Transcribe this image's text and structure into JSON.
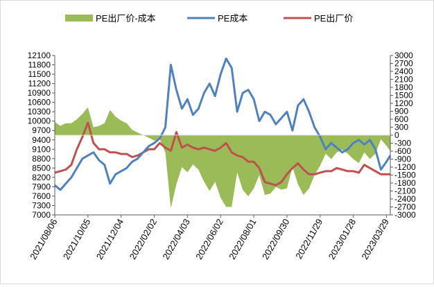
{
  "chart_data": {
    "type": "line",
    "title": "",
    "legend_position": "top",
    "legend": [
      {
        "key": "spread",
        "label": "PE出厂价-成本",
        "color": "#9bbb59",
        "kind": "area"
      },
      {
        "key": "cost",
        "label": "PE成本",
        "color": "#4f81bd",
        "kind": "line"
      },
      {
        "key": "price",
        "label": "PE出厂价",
        "color": "#c0504d",
        "kind": "line"
      }
    ],
    "x_dates": [
      "2021/08/06",
      "2021/10/05",
      "2021/12/04",
      "2022/02/02",
      "2022/04/03",
      "2022/06/02",
      "2022/08/01",
      "2022/09/30",
      "2022/11/29",
      "2023/01/28",
      "2023/03/29"
    ],
    "x_range": [
      "2021/08/06",
      "2023/04/05"
    ],
    "y_left": {
      "min": 7000,
      "max": 12100,
      "step": 300,
      "ticks": [
        "7000",
        "7300",
        "7600",
        "7900",
        "8200",
        "8500",
        "8800",
        "9100",
        "9400",
        "9700",
        "10000",
        "10300",
        "10600",
        "10900",
        "11200",
        "11500",
        "11800",
        "12100"
      ]
    },
    "y_right": {
      "min": -3000,
      "max": 3000,
      "step": 300,
      "ticks": [
        "-3000",
        "-2700",
        "-2400",
        "-2100",
        "-1800",
        "-1500",
        "-1200",
        "-900",
        "-600",
        "-300",
        "0",
        "300",
        "600",
        "900",
        "1200",
        "1500",
        "1800",
        "2100",
        "2400",
        "2700",
        "3000"
      ]
    },
    "grid": false,
    "series": [
      {
        "name": "PE成本",
        "axis": "left",
        "color": "#4f81bd",
        "x": [
          "2021/08/06",
          "2021/08/16",
          "2021/08/26",
          "2021/09/05",
          "2021/09/15",
          "2021/09/25",
          "2021/10/05",
          "2021/10/15",
          "2021/10/25",
          "2021/11/04",
          "2021/11/14",
          "2021/11/24",
          "2021/12/04",
          "2021/12/14",
          "2021/12/24",
          "2022/01/03",
          "2022/01/13",
          "2022/01/23",
          "2022/02/02",
          "2022/02/12",
          "2022/02/22",
          "2022/03/04",
          "2022/03/14",
          "2022/03/24",
          "2022/04/03",
          "2022/04/13",
          "2022/04/23",
          "2022/05/03",
          "2022/05/13",
          "2022/05/23",
          "2022/06/02",
          "2022/06/12",
          "2022/06/22",
          "2022/07/02",
          "2022/07/12",
          "2022/07/22",
          "2022/08/01",
          "2022/08/11",
          "2022/08/21",
          "2022/08/31",
          "2022/09/10",
          "2022/09/20",
          "2022/09/30",
          "2022/10/10",
          "2022/10/20",
          "2022/10/30",
          "2022/11/09",
          "2022/11/19",
          "2022/11/29",
          "2022/12/09",
          "2022/12/19",
          "2022/12/29",
          "2023/01/08",
          "2023/01/18",
          "2023/01/28",
          "2023/02/07",
          "2023/02/17",
          "2023/02/27",
          "2023/03/09",
          "2023/03/19",
          "2023/03/29",
          "2023/04/05"
        ],
        "y": [
          7950,
          7800,
          8000,
          8200,
          8500,
          8800,
          8900,
          9000,
          8750,
          8600,
          8000,
          8300,
          8400,
          8500,
          8700,
          8800,
          9000,
          9200,
          9300,
          9450,
          9800,
          11800,
          11000,
          10400,
          10700,
          10200,
          10400,
          10900,
          11200,
          10800,
          11500,
          12000,
          11700,
          10300,
          10900,
          11000,
          10700,
          10000,
          10300,
          10200,
          9900,
          10100,
          10300,
          9700,
          10500,
          10700,
          10300,
          9800,
          9500,
          9100,
          9300,
          9150,
          9000,
          9100,
          9300,
          9400,
          9250,
          9400,
          9100,
          8450,
          8700,
          8900
        ]
      },
      {
        "name": "PE出厂价",
        "axis": "left",
        "color": "#c0504d",
        "x": [
          "2021/08/06",
          "2021/08/16",
          "2021/08/26",
          "2021/09/05",
          "2021/09/15",
          "2021/09/25",
          "2021/10/05",
          "2021/10/15",
          "2021/10/25",
          "2021/11/04",
          "2021/11/14",
          "2021/11/24",
          "2021/12/04",
          "2021/12/14",
          "2021/12/24",
          "2022/01/03",
          "2022/01/13",
          "2022/01/23",
          "2022/02/02",
          "2022/02/12",
          "2022/02/22",
          "2022/03/04",
          "2022/03/14",
          "2022/03/24",
          "2022/04/03",
          "2022/04/13",
          "2022/04/23",
          "2022/05/03",
          "2022/05/13",
          "2022/05/23",
          "2022/06/02",
          "2022/06/12",
          "2022/06/22",
          "2022/07/02",
          "2022/07/12",
          "2022/07/22",
          "2022/08/01",
          "2022/08/11",
          "2022/08/21",
          "2022/08/31",
          "2022/09/10",
          "2022/09/20",
          "2022/09/30",
          "2022/10/10",
          "2022/10/20",
          "2022/10/30",
          "2022/11/09",
          "2022/11/19",
          "2022/11/29",
          "2022/12/09",
          "2022/12/19",
          "2022/12/29",
          "2023/01/08",
          "2023/01/18",
          "2023/01/28",
          "2023/02/07",
          "2023/02/17",
          "2023/02/27",
          "2023/03/09",
          "2023/03/19",
          "2023/03/29",
          "2023/04/05"
        ],
        "y": [
          8350,
          8400,
          8450,
          8600,
          9100,
          9500,
          9950,
          9300,
          9100,
          9100,
          9000,
          9000,
          8950,
          8950,
          8850,
          8900,
          9000,
          9100,
          9100,
          9300,
          9150,
          9050,
          9650,
          9150,
          9250,
          9150,
          9100,
          9150,
          9100,
          9050,
          9150,
          9300,
          9000,
          8900,
          8850,
          8700,
          8700,
          8500,
          8050,
          8000,
          7950,
          8050,
          8300,
          8500,
          8650,
          8450,
          8300,
          8300,
          8350,
          8400,
          8400,
          8500,
          8450,
          8400,
          8400,
          8350,
          8600,
          8500,
          8400,
          8300,
          8300,
          8300
        ]
      },
      {
        "name": "PE出厂价-成本",
        "axis": "right",
        "color": "#9bbb59",
        "x": [
          "2021/08/06",
          "2021/08/16",
          "2021/08/26",
          "2021/09/05",
          "2021/09/15",
          "2021/09/25",
          "2021/10/05",
          "2021/10/15",
          "2021/10/25",
          "2021/11/04",
          "2021/11/14",
          "2021/11/24",
          "2021/12/04",
          "2021/12/14",
          "2021/12/24",
          "2022/01/03",
          "2022/01/13",
          "2022/01/23",
          "2022/02/02",
          "2022/02/12",
          "2022/02/22",
          "2022/03/04",
          "2022/03/14",
          "2022/03/24",
          "2022/04/03",
          "2022/04/13",
          "2022/04/23",
          "2022/05/03",
          "2022/05/13",
          "2022/05/23",
          "2022/06/02",
          "2022/06/12",
          "2022/06/22",
          "2022/07/02",
          "2022/07/12",
          "2022/07/22",
          "2022/08/01",
          "2022/08/11",
          "2022/08/21",
          "2022/08/31",
          "2022/09/10",
          "2022/09/20",
          "2022/09/30",
          "2022/10/10",
          "2022/10/20",
          "2022/10/30",
          "2022/11/09",
          "2022/11/19",
          "2022/11/29",
          "2022/12/09",
          "2022/12/19",
          "2022/12/29",
          "2023/01/08",
          "2023/01/18",
          "2023/01/28",
          "2023/02/07",
          "2023/02/17",
          "2023/02/27",
          "2023/03/09",
          "2023/03/19",
          "2023/03/29",
          "2023/04/05"
        ],
        "y": [
          500,
          350,
          450,
          450,
          600,
          800,
          1050,
          300,
          350,
          450,
          950,
          700,
          550,
          450,
          200,
          100,
          0,
          -100,
          -200,
          -150,
          -650,
          -2750,
          -1850,
          -1200,
          -1400,
          -1100,
          -1300,
          -1750,
          -2100,
          -1750,
          -2350,
          -2700,
          -2700,
          -1400,
          -2050,
          -2300,
          -2000,
          -1500,
          -2250,
          -2200,
          -1950,
          -2050,
          -2000,
          -1200,
          -1850,
          -2250,
          -2000,
          -1500,
          -1150,
          -700,
          -900,
          -650,
          -550,
          -700,
          -900,
          -1050,
          -650,
          -900,
          -700,
          -150,
          -400,
          -600
        ]
      }
    ]
  }
}
